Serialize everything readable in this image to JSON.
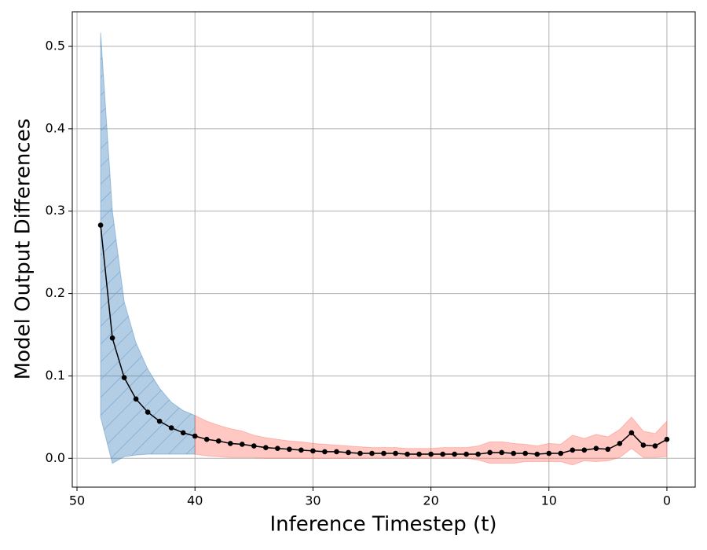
{
  "chart_data": {
    "type": "line",
    "xlabel": "Inference Timestep (t)",
    "ylabel": "Model Output Differences",
    "xlim": [
      50.4,
      -2.4
    ],
    "ylim": [
      -0.035,
      0.542
    ],
    "xticks": [
      50,
      40,
      30,
      20,
      10,
      0
    ],
    "yticks": [
      {
        "value": 0,
        "label": "0.0"
      },
      0.1,
      0.2,
      0.3,
      0.4,
      0.5
    ],
    "grid": true,
    "x": [
      48,
      47,
      46,
      45,
      44,
      43,
      42,
      41,
      40,
      39,
      38,
      37,
      36,
      35,
      34,
      33,
      32,
      31,
      30,
      29,
      28,
      27,
      26,
      25,
      24,
      23,
      22,
      21,
      20,
      19,
      18,
      17,
      16,
      15,
      14,
      13,
      12,
      11,
      10,
      9,
      8,
      7,
      6,
      5,
      4,
      3,
      2,
      1,
      0
    ],
    "series": [
      {
        "color": "#000000",
        "values": [
          0.283,
          0.146,
          0.098,
          0.072,
          0.056,
          0.045,
          0.037,
          0.031,
          0.027,
          0.023,
          0.021,
          0.018,
          0.017,
          0.015,
          0.013,
          0.012,
          0.011,
          0.01,
          0.009,
          0.008,
          0.008,
          0.007,
          0.006,
          0.006,
          0.006,
          0.006,
          0.005,
          0.005,
          0.005,
          0.005,
          0.005,
          0.005,
          0.005,
          0.007,
          0.007,
          0.006,
          0.006,
          0.005,
          0.006,
          0.006,
          0.01,
          0.01,
          0.012,
          0.011,
          0.018,
          0.031,
          0.016,
          0.015,
          0.023
        ]
      }
    ],
    "bands": [
      {
        "color": "#377eb8",
        "hatch": true,
        "x": [
          48,
          47,
          46,
          45,
          44,
          43,
          42,
          41,
          40
        ],
        "upper": [
          0.517,
          0.3,
          0.19,
          0.14,
          0.108,
          0.085,
          0.068,
          0.058,
          0.052
        ],
        "lower": [
          0.05,
          -0.006,
          0.002,
          0.004,
          0.005,
          0.005,
          0.005,
          0.005,
          0.005
        ]
      },
      {
        "color": "#ff6f61",
        "hatch": false,
        "x": [
          40,
          39,
          38,
          37,
          36,
          35,
          34,
          33,
          32,
          31,
          30,
          29,
          28,
          27,
          26,
          25,
          24,
          23,
          22,
          21,
          20,
          19,
          18,
          17,
          16,
          15,
          14,
          13,
          12,
          11,
          10,
          9,
          8,
          7,
          6,
          5,
          4,
          3,
          2,
          1,
          0
        ],
        "upper": [
          0.052,
          0.045,
          0.04,
          0.036,
          0.033,
          0.028,
          0.025,
          0.023,
          0.021,
          0.02,
          0.018,
          0.017,
          0.016,
          0.015,
          0.014,
          0.013,
          0.013,
          0.013,
          0.012,
          0.012,
          0.012,
          0.013,
          0.013,
          0.013,
          0.015,
          0.02,
          0.02,
          0.018,
          0.017,
          0.015,
          0.018,
          0.017,
          0.028,
          0.024,
          0.029,
          0.026,
          0.035,
          0.05,
          0.033,
          0.03,
          0.045
        ],
        "lower": [
          0.005,
          0.003,
          0.002,
          0.001,
          0.001,
          0.001,
          0.0,
          0.0,
          0.0,
          0.0,
          0.0,
          0.0,
          0.0,
          0.0,
          0.0,
          0.0,
          0.0,
          0.0,
          0.0,
          0.0,
          0.0,
          0.0,
          0.0,
          0.0,
          -0.002,
          -0.006,
          -0.006,
          -0.006,
          -0.004,
          -0.004,
          -0.004,
          -0.004,
          -0.008,
          -0.003,
          -0.004,
          -0.003,
          0.001,
          0.012,
          0.001,
          0.001,
          0.002
        ]
      }
    ]
  }
}
